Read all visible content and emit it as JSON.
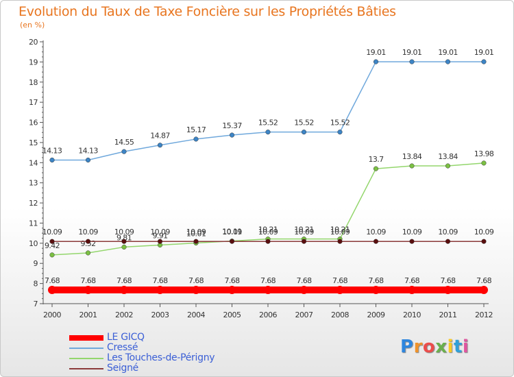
{
  "title": "Evolution du Taux de Taxe Foncière sur les Propriétés Bâties",
  "unit": "(en %)",
  "colors": {
    "title": "#e8751f",
    "axis": "#555555",
    "label": "#333333",
    "legend_text": "#3b5fd6"
  },
  "brand": {
    "letters": [
      "P",
      "r",
      "o",
      "x",
      "i",
      "t",
      "i"
    ],
    "colors": [
      "#2e86de",
      "#f0932b",
      "#eb4d4b",
      "#6ab04c",
      "#f9ca24",
      "#30a0d8",
      "#e056a0"
    ]
  },
  "chart_data": {
    "type": "line",
    "x": [
      "2000",
      "2001",
      "2002",
      "2003",
      "2004",
      "2005",
      "2006",
      "2007",
      "2008",
      "2009",
      "2010",
      "2011",
      "2012"
    ],
    "ylim": [
      7,
      20
    ],
    "yticks": [
      "7",
      "8",
      "9",
      "10",
      "11",
      "12",
      "13",
      "14",
      "15",
      "16",
      "17",
      "18",
      "19",
      "20"
    ],
    "series": [
      {
        "name": "LE GICQ",
        "color": "#ff0000",
        "marker": "#ff0000",
        "width": 10,
        "values": [
          7.68,
          7.68,
          7.68,
          7.68,
          7.68,
          7.68,
          7.68,
          7.68,
          7.68,
          7.68,
          7.68,
          7.68,
          7.68
        ],
        "labels": [
          "7.68",
          "7.68",
          "7.68",
          "7.68",
          "7.68",
          "7.68",
          "7.68",
          "7.68",
          "7.68",
          "7.68",
          "7.68",
          "7.68",
          "7.68"
        ]
      },
      {
        "name": "Cressé",
        "color": "#6fa8dc",
        "marker": "#3d85c6",
        "width": 1.5,
        "values": [
          14.13,
          14.13,
          14.55,
          14.87,
          15.17,
          15.37,
          15.52,
          15.52,
          15.52,
          19.01,
          19.01,
          19.01,
          19.01
        ],
        "labels": [
          "14.13",
          "14.13",
          "14.55",
          "14.87",
          "15.17",
          "15.37",
          "15.52",
          "15.52",
          "15.52",
          "19.01",
          "19.01",
          "19.01",
          "19.01"
        ]
      },
      {
        "name": "Les Touches-de-Périgny",
        "color": "#93d66c",
        "marker": "#7bc043",
        "width": 1.5,
        "values": [
          9.42,
          9.52,
          9.81,
          9.91,
          10.01,
          10.11,
          10.21,
          10.21,
          10.21,
          13.7,
          13.84,
          13.84,
          13.98
        ],
        "labels": [
          "9.42",
          "9.52",
          "9.81",
          "9.91",
          "10.01",
          "10.11",
          "10.21",
          "10.21",
          "10.21",
          "13.7",
          "13.84",
          "13.84",
          "13.98"
        ]
      },
      {
        "name": "Seigné",
        "color": "#8b3a3a",
        "marker": "#5a0f0f",
        "width": 1.5,
        "values": [
          10.09,
          10.09,
          10.09,
          10.09,
          10.09,
          10.09,
          10.09,
          10.09,
          10.09,
          10.09,
          10.09,
          10.09,
          10.09
        ],
        "labels": [
          "10.09",
          "10.09",
          "10.09",
          "10.09",
          "10.09",
          "10.09",
          "10.09",
          "10.09",
          "10.09",
          "10.09",
          "10.09",
          "10.09",
          "10.09"
        ]
      }
    ]
  }
}
